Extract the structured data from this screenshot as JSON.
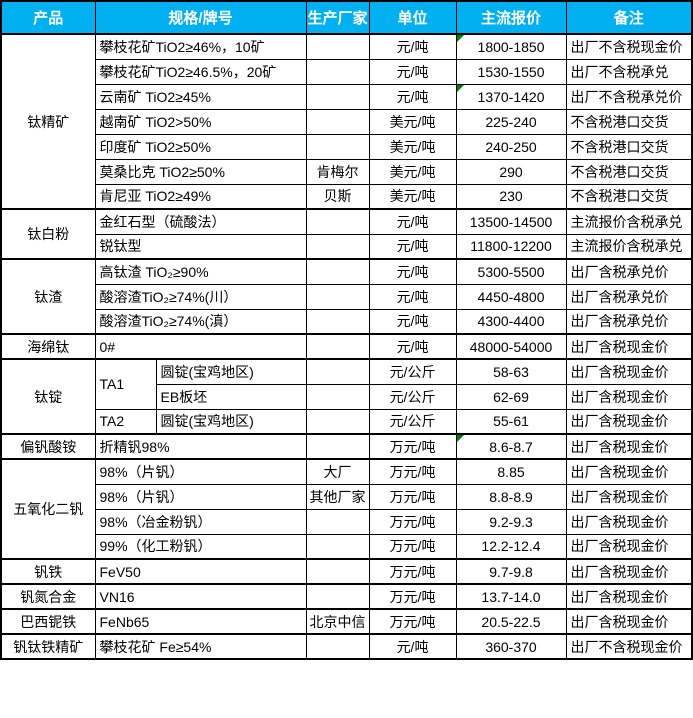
{
  "colors": {
    "header_bg": "#00B0F0",
    "header_text": "#ffffff",
    "border": "#000000",
    "comment_flag": "#008000"
  },
  "header": {
    "columns": [
      "产品",
      "规格/牌号",
      "生产厂家",
      "单位",
      "主流报价",
      "备注"
    ]
  },
  "groups": [
    {
      "product": "钛精矿",
      "rows": [
        {
          "spec": "攀枝花矿TiO2≥46%，10矿",
          "maker": "",
          "unit": "元/吨",
          "price": "1800-1850",
          "note": "出厂不含税现金价",
          "flag": true
        },
        {
          "spec": "攀枝花矿TiO2≥46.5%，20矿",
          "maker": "",
          "unit": "元/吨",
          "price": "1530-1550",
          "note": "出厂不含税承兑",
          "flag": false
        },
        {
          "spec": "云南矿 TiO2≥45%",
          "maker": "",
          "unit": "元/吨",
          "price": "1370-1420",
          "note": "出厂不含税承兑价",
          "flag": true
        },
        {
          "spec": "越南矿 TiO2>50%",
          "maker": "",
          "unit": "美元/吨",
          "price": "225-240",
          "note": "不含税港口交货",
          "flag": false
        },
        {
          "spec": "印度矿 TiO2≥50%",
          "maker": "",
          "unit": "美元/吨",
          "price": "240-250",
          "note": "不含税港口交货",
          "flag": false
        },
        {
          "spec": "莫桑比克 TiO2≥50%",
          "maker": "肯梅尔",
          "unit": "美元/吨",
          "price": "290",
          "note": "不含税港口交货",
          "flag": false
        },
        {
          "spec": "肯尼亚 TiO2≥49%",
          "maker": "贝斯",
          "unit": "美元/吨",
          "price": "230",
          "note": "不含税港口交货",
          "flag": false
        }
      ]
    },
    {
      "product": "钛白粉",
      "rows": [
        {
          "spec": "金红石型（硫酸法）",
          "maker": "",
          "unit": "元/吨",
          "price": "13500-14500",
          "note": "主流报价含税承兑",
          "flag": false
        },
        {
          "spec": "锐钛型",
          "maker": "",
          "unit": "元/吨",
          "price": "11800-12200",
          "note": "主流报价含税承兑",
          "flag": false
        }
      ]
    },
    {
      "product": "钛渣",
      "rows": [
        {
          "spec": "高钛渣 TiO₂≥90%",
          "maker": "",
          "unit": "元/吨",
          "price": "5300-5500",
          "note": "出厂含税承兑价",
          "flag": false
        },
        {
          "spec": "酸溶渣TiO₂≥74%(川）",
          "maker": "",
          "unit": "元/吨",
          "price": "4450-4800",
          "note": "出厂含税承兑价",
          "flag": false
        },
        {
          "spec": "酸溶渣TiO₂≥74%(滇）",
          "maker": "",
          "unit": "元/吨",
          "price": "4300-4400",
          "note": "出厂含税承兑价",
          "flag": false
        }
      ]
    },
    {
      "product": "海绵钛",
      "rows": [
        {
          "spec": "0#",
          "maker": "",
          "unit": "元/吨",
          "price": "48000-54000",
          "note": "出厂含税现金价",
          "flag": false
        }
      ]
    },
    {
      "product": "钛锭",
      "rows": [
        {
          "grade": "TA1",
          "grade_rowspan": 2,
          "form": "圆锭(宝鸡地区)",
          "maker": "",
          "unit": "元/公斤",
          "price": "58-63",
          "note": "出厂含税现金价",
          "flag": false
        },
        {
          "form": "EB板坯",
          "maker": "",
          "unit": "元/公斤",
          "price": "62-69",
          "note": "出厂含税现金价",
          "flag": false
        },
        {
          "grade": "TA2",
          "grade_rowspan": 1,
          "form": "圆锭(宝鸡地区)",
          "maker": "",
          "unit": "元/公斤",
          "price": "55-61",
          "note": "出厂含税现金价",
          "flag": false
        }
      ]
    },
    {
      "product": "偏钒酸铵",
      "rows": [
        {
          "spec": "折精钒98%",
          "maker": "",
          "unit": "万元/吨",
          "price": "8.6-8.7",
          "note": "出厂含税现金价",
          "flag": true
        }
      ]
    },
    {
      "product": "五氧化二钒",
      "rows": [
        {
          "spec": "98%（片钒）",
          "maker": "大厂",
          "unit": "万元/吨",
          "price": "8.85",
          "note": "出厂含税现金价",
          "flag": false
        },
        {
          "spec": "98%（片钒）",
          "maker": "其他厂家",
          "unit": "万元/吨",
          "price": "8.8-8.9",
          "note": "出厂含税现金价",
          "flag": false
        },
        {
          "spec": "98%（冶金粉钒）",
          "maker": "",
          "unit": "万元/吨",
          "price": "9.2-9.3",
          "note": "出厂含税现金价",
          "flag": false
        },
        {
          "spec": "99%（化工粉钒）",
          "maker": "",
          "unit": "万元/吨",
          "price": "12.2-12.4",
          "note": "出厂含税现金价",
          "flag": false
        }
      ]
    },
    {
      "product": "钒铁",
      "rows": [
        {
          "spec": "FeV50",
          "maker": "",
          "unit": "万元/吨",
          "price": "9.7-9.8",
          "note": "出厂含税现金价",
          "flag": false
        }
      ]
    },
    {
      "product": "钒氮合金",
      "rows": [
        {
          "spec": "VN16",
          "maker": "",
          "unit": "万元/吨",
          "price": "13.7-14.0",
          "note": "出厂含税现金价",
          "flag": false
        }
      ]
    },
    {
      "product": "巴西铌铁",
      "rows": [
        {
          "spec": "FeNb65",
          "maker": "北京中信",
          "unit": "万元/吨",
          "price": "20.5-22.5",
          "note": "出厂含税现金价",
          "flag": false
        }
      ]
    },
    {
      "product": "钒钛铁精矿",
      "rows": [
        {
          "spec": "攀枝花矿 Fe≥54%",
          "maker": "",
          "unit": "元/吨",
          "price": "360-370",
          "note": "出厂不含税现金价",
          "flag": false
        }
      ]
    }
  ]
}
